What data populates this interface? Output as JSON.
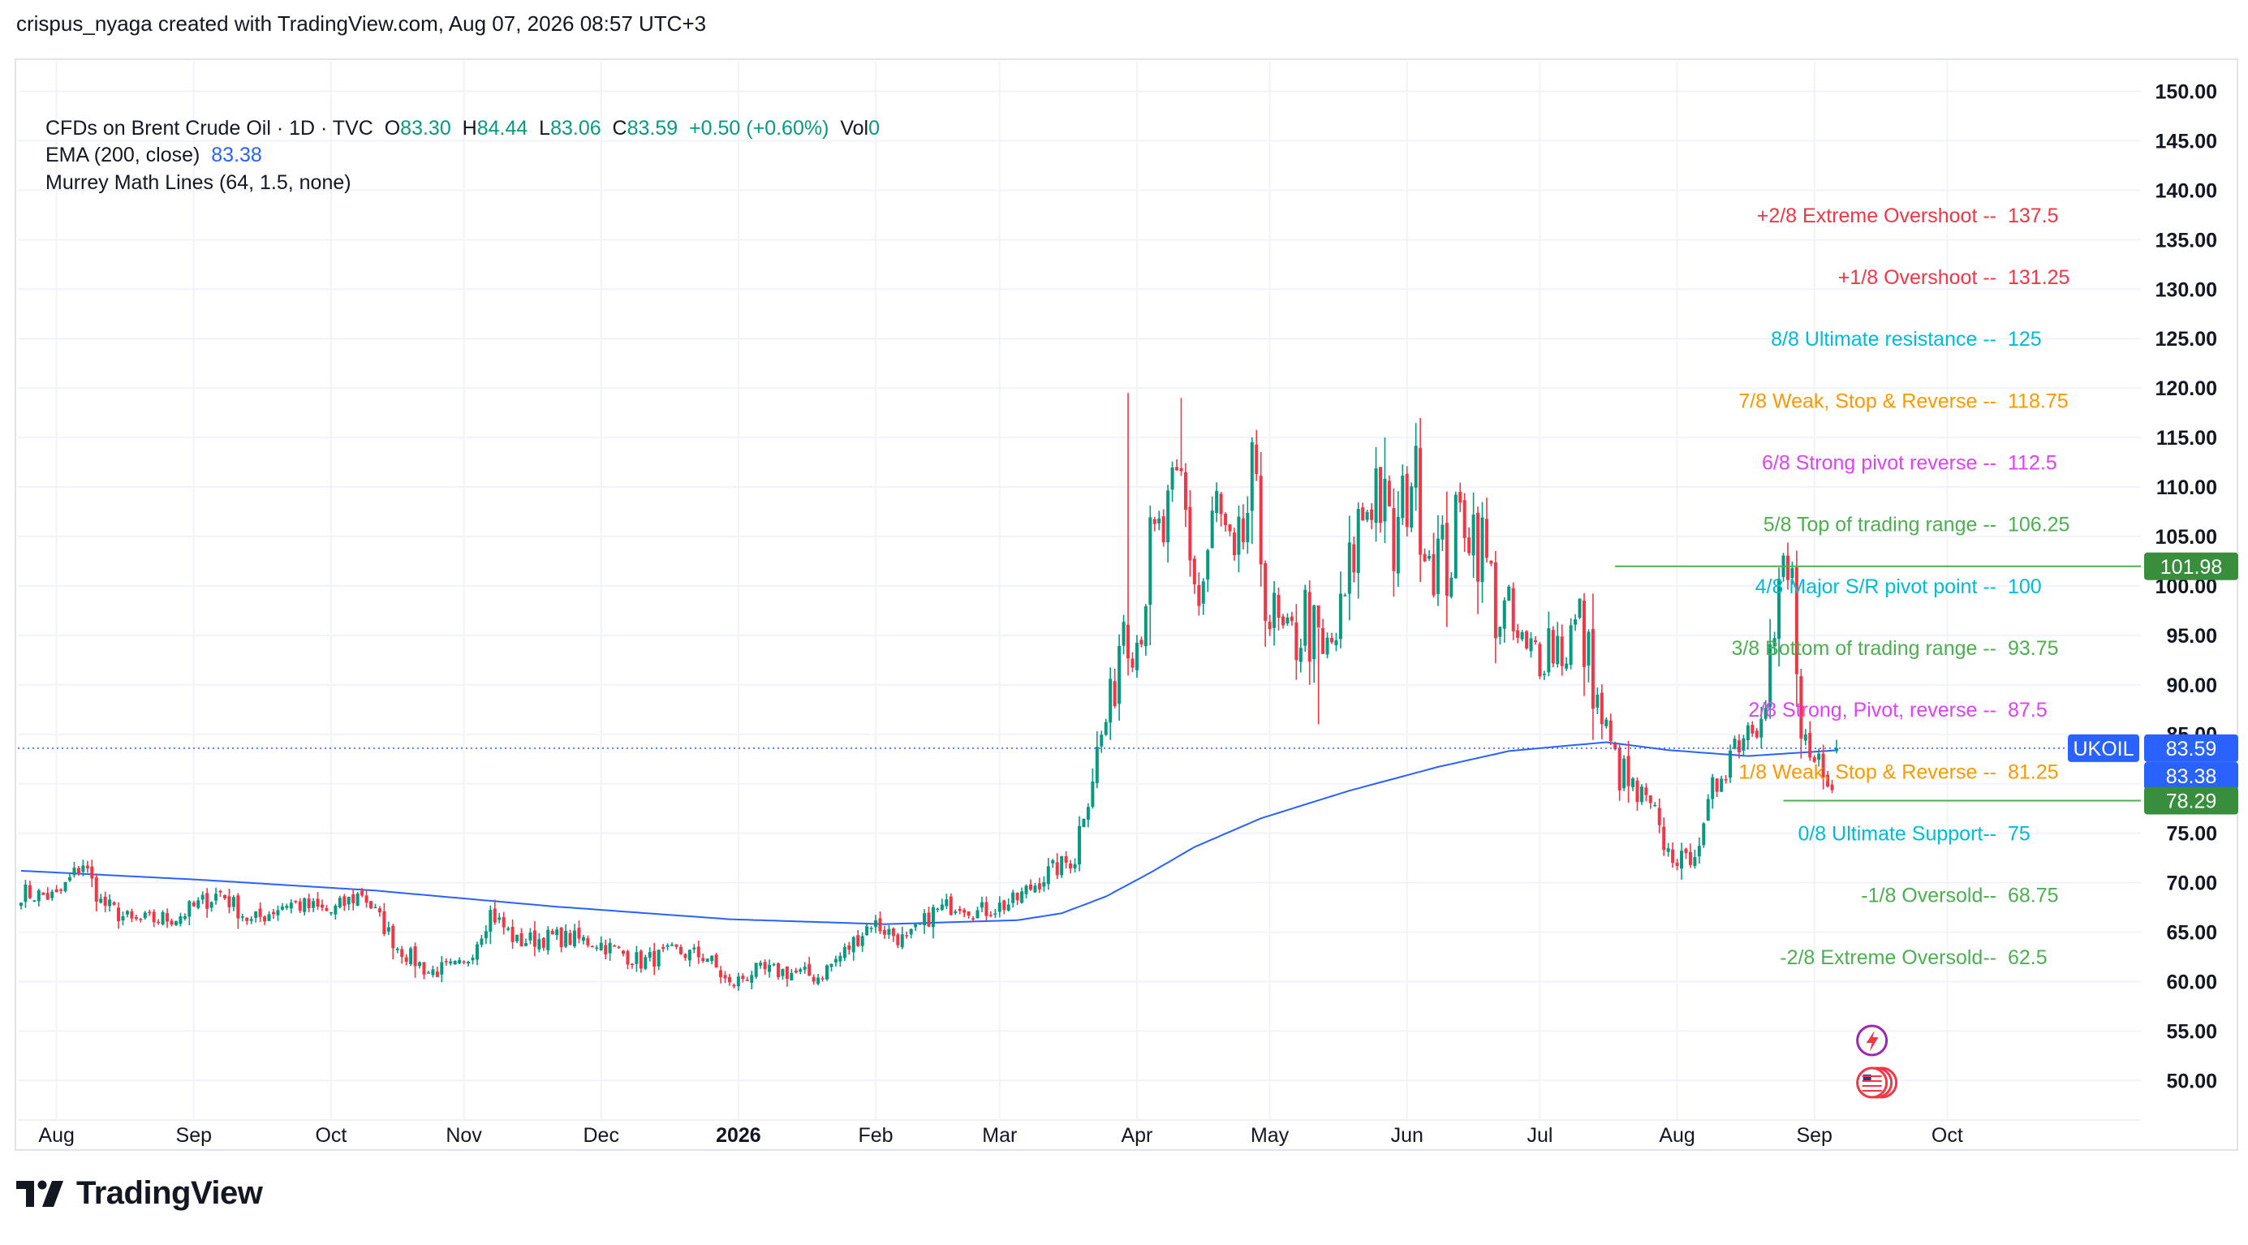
{
  "attribution": "crispus_nyaga created with TradingView.com, Aug 07, 2026 08:57 UTC+3",
  "legend": {
    "symbol": "CFDs on Brent Crude Oil · 1D · TVC",
    "o_label": "O",
    "o": "83.30",
    "h_label": "H",
    "h": "84.44",
    "l_label": "L",
    "l": "83.06",
    "c_label": "C",
    "c": "83.59",
    "change": "+0.50 (+0.60%)",
    "vol_label": "Vol",
    "vol": "0",
    "ema_label": "EMA (200, close)",
    "ema_value": "83.38",
    "murrey_label": "Murrey Math Lines (64, 1.5, none)"
  },
  "footer": {
    "brand": "TradingView"
  },
  "colors": {
    "up": "#089981",
    "down": "#f23645",
    "ema": "#2962ff",
    "grid": "#f0f3fa",
    "text": "#131722"
  },
  "chart_data": {
    "type": "candlestick",
    "symbol": "UKOIL",
    "ylim": [
      46,
      153
    ],
    "y_ticks": [
      "50.00",
      "55.00",
      "60.00",
      "65.00",
      "70.00",
      "75.00",
      "80.00",
      "85.00",
      "90.00",
      "95.00",
      "100.00",
      "105.00",
      "110.00",
      "115.00",
      "120.00",
      "125.00",
      "130.00",
      "135.00",
      "140.00",
      "145.00",
      "150.00"
    ],
    "x_ticks": [
      "Aug",
      "Sep",
      "Oct",
      "Nov",
      "Dec",
      "2026",
      "Feb",
      "Mar",
      "Apr",
      "May",
      "Jun",
      "Jul",
      "Aug",
      "Sep",
      "Oct"
    ],
    "keypoints": [
      {
        "d": 0,
        "c": 69
      },
      {
        "d": 8,
        "c": 68.5
      },
      {
        "d": 14,
        "c": 72
      },
      {
        "d": 18,
        "c": 68
      },
      {
        "d": 25,
        "c": 66
      },
      {
        "d": 35,
        "c": 66.5
      },
      {
        "d": 45,
        "c": 69
      },
      {
        "d": 52,
        "c": 66
      },
      {
        "d": 60,
        "c": 68
      },
      {
        "d": 70,
        "c": 67
      },
      {
        "d": 77,
        "c": 69
      },
      {
        "d": 85,
        "c": 63.5
      },
      {
        "d": 92,
        "c": 61
      },
      {
        "d": 100,
        "c": 61.5
      },
      {
        "d": 106,
        "c": 67
      },
      {
        "d": 112,
        "c": 64
      },
      {
        "d": 120,
        "c": 64.5
      },
      {
        "d": 130,
        "c": 64
      },
      {
        "d": 140,
        "c": 62
      },
      {
        "d": 148,
        "c": 63
      },
      {
        "d": 155,
        "c": 62.5
      },
      {
        "d": 160,
        "c": 59.5
      },
      {
        "d": 165,
        "c": 61
      },
      {
        "d": 172,
        "c": 61
      },
      {
        "d": 180,
        "c": 60.5
      },
      {
        "d": 186,
        "c": 63
      },
      {
        "d": 192,
        "c": 66
      },
      {
        "d": 200,
        "c": 64
      },
      {
        "d": 206,
        "c": 67
      },
      {
        "d": 212,
        "c": 68
      },
      {
        "d": 216,
        "c": 67
      },
      {
        "d": 224,
        "c": 68
      },
      {
        "d": 232,
        "c": 71
      },
      {
        "d": 238,
        "c": 72.5
      },
      {
        "d": 240,
        "c": 78
      },
      {
        "d": 243,
        "c": 83
      },
      {
        "d": 246,
        "c": 88
      },
      {
        "d": 249,
        "c": 98
      },
      {
        "d": 252,
        "c": 95
      },
      {
        "d": 255,
        "c": 103
      },
      {
        "d": 258,
        "c": 105
      },
      {
        "d": 262,
        "c": 110
      },
      {
        "d": 266,
        "c": 98
      },
      {
        "d": 270,
        "c": 108
      },
      {
        "d": 274,
        "c": 100
      },
      {
        "d": 278,
        "c": 110
      },
      {
        "d": 282,
        "c": 97
      },
      {
        "d": 286,
        "c": 93
      },
      {
        "d": 290,
        "c": 97
      },
      {
        "d": 294,
        "c": 92
      },
      {
        "d": 298,
        "c": 96
      },
      {
        "d": 302,
        "c": 106
      },
      {
        "d": 306,
        "c": 111
      },
      {
        "d": 310,
        "c": 103
      },
      {
        "d": 314,
        "c": 112
      },
      {
        "d": 318,
        "c": 104
      },
      {
        "d": 322,
        "c": 102
      },
      {
        "d": 326,
        "c": 108
      },
      {
        "d": 330,
        "c": 104
      },
      {
        "d": 333,
        "c": 98
      },
      {
        "d": 336,
        "c": 96
      },
      {
        "d": 340,
        "c": 92
      },
      {
        "d": 344,
        "c": 95
      },
      {
        "d": 348,
        "c": 94
      },
      {
        "d": 352,
        "c": 96
      },
      {
        "d": 356,
        "c": 88
      },
      {
        "d": 360,
        "c": 82
      },
      {
        "d": 364,
        "c": 79
      },
      {
        "d": 368,
        "c": 77
      },
      {
        "d": 372,
        "c": 73
      },
      {
        "d": 376,
        "c": 72
      },
      {
        "d": 380,
        "c": 75
      },
      {
        "d": 384,
        "c": 82
      },
      {
        "d": 388,
        "c": 85
      },
      {
        "d": 392,
        "c": 87
      },
      {
        "d": 396,
        "c": 95
      },
      {
        "d": 398,
        "c": 101
      },
      {
        "d": 400,
        "c": 100
      },
      {
        "d": 402,
        "c": 84
      },
      {
        "d": 405,
        "c": 80
      },
      {
        "d": 406,
        "c": 82
      },
      {
        "d": 408,
        "c": 78.3
      },
      {
        "d": 410,
        "c": 83.59
      }
    ],
    "ema_200": [
      {
        "d": 0,
        "c": 71.2
      },
      {
        "d": 40,
        "c": 70.3
      },
      {
        "d": 80,
        "c": 69.2
      },
      {
        "d": 120,
        "c": 67.6
      },
      {
        "d": 160,
        "c": 66.3
      },
      {
        "d": 195,
        "c": 65.8
      },
      {
        "d": 225,
        "c": 66.2
      },
      {
        "d": 235,
        "c": 66.9
      },
      {
        "d": 245,
        "c": 68.6
      },
      {
        "d": 255,
        "c": 71
      },
      {
        "d": 265,
        "c": 73.6
      },
      {
        "d": 280,
        "c": 76.5
      },
      {
        "d": 300,
        "c": 79.3
      },
      {
        "d": 320,
        "c": 81.7
      },
      {
        "d": 336,
        "c": 83.3
      },
      {
        "d": 358,
        "c": 84.2
      },
      {
        "d": 372,
        "c": 83.4
      },
      {
        "d": 390,
        "c": 82.8
      },
      {
        "d": 410,
        "c": 83.38
      }
    ],
    "spikes": [
      {
        "d": 250,
        "h": 119.5
      },
      {
        "d": 262,
        "h": 119
      },
      {
        "d": 308,
        "h": 115
      },
      {
        "d": 293,
        "h": 86
      },
      {
        "d": 240,
        "l": 76
      }
    ],
    "murrey_lines": [
      {
        "label": "+2/8 Extreme Overshoot --",
        "value": "137.5",
        "color": "#f23645"
      },
      {
        "label": "+1/8 Overshoot --",
        "value": "131.25",
        "color": "#f23645"
      },
      {
        "label": "8/8 Ultimate resistance --",
        "value": "125",
        "color": "#00bcd4"
      },
      {
        "label": "7/8 Weak, Stop & Reverse --",
        "value": "118.75",
        "color": "#ff9800"
      },
      {
        "label": "6/8 Strong pivot reverse --",
        "value": "112.5",
        "color": "#e040fb"
      },
      {
        "label": "5/8 Top of trading range --",
        "value": "106.25",
        "color": "#4caf50"
      },
      {
        "label": "4/8 Major S/R pivot point --",
        "value": "100",
        "color": "#00bcd4"
      },
      {
        "label": "3/8 Bottom of trading range --",
        "value": "93.75",
        "color": "#4caf50"
      },
      {
        "label": "2/8 Strong, Pivot, reverse --",
        "value": "87.5",
        "color": "#e040fb"
      },
      {
        "label": "1/8 Weak, Stop & Reverse --",
        "value": "81.25",
        "color": "#ff9800"
      },
      {
        "label": "0/8 Ultimate Support--",
        "value": "75",
        "color": "#00bcd4"
      },
      {
        "label": "-1/8 Oversold--",
        "value": "68.75",
        "color": "#4caf50"
      },
      {
        "label": "-2/8 Extreme Oversold--",
        "value": "62.5",
        "color": "#4caf50"
      }
    ],
    "hlines": [
      {
        "value": 101.98,
        "label": "101.98",
        "color": "#4caf50"
      },
      {
        "value": 78.29,
        "label": "78.29",
        "color": "#4caf50"
      }
    ],
    "price_labels": [
      {
        "text": "UKOIL",
        "kind": "symbol"
      },
      {
        "text": "83.59",
        "value": 83.59,
        "kind": "last"
      },
      {
        "text": "83.38",
        "value": 83.38,
        "kind": "ema"
      },
      {
        "text": "101.98",
        "value": 101.98,
        "kind": "high"
      },
      {
        "text": "78.29",
        "value": 78.29,
        "kind": "low"
      }
    ],
    "last_price": 83.59
  }
}
